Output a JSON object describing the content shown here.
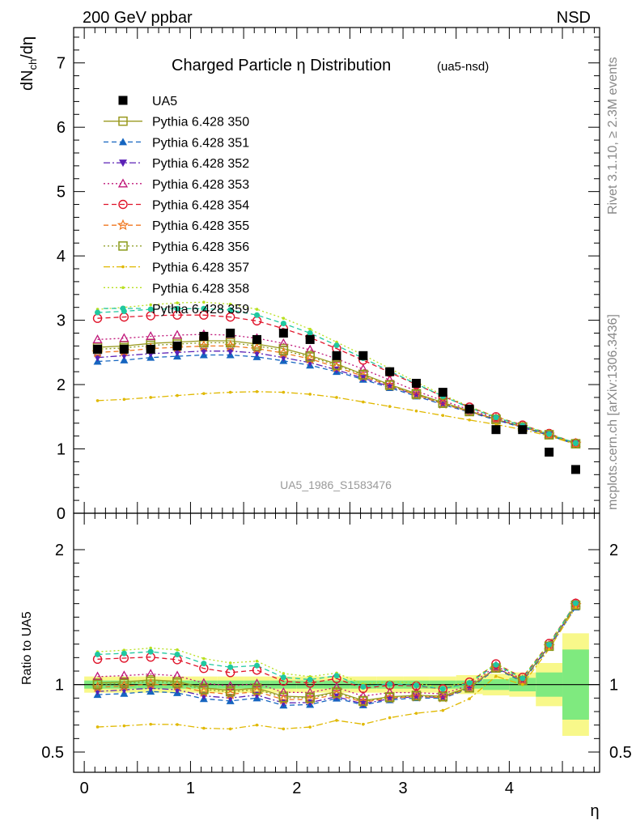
{
  "header": {
    "energy_label": "200 GeV ppbar",
    "process_label": "NSD",
    "side_label_top": "Rivet 3.1.10, ≥ 2.3M events",
    "side_label_bottom": "mcplots.cern.ch [arXiv:1306.3436]",
    "watermark": "UA5_1986_S1583476"
  },
  "chart_data": [
    {
      "type": "line",
      "title": "Charged Particle η Distribution",
      "subtitle": "(ua5-nsd)",
      "ylabel": "dN_ch/dη",
      "xlabel": "",
      "xlim": [
        -0.1,
        4.85
      ],
      "ylim": [
        0,
        7.55
      ],
      "yticks": [
        "0",
        "1",
        "2",
        "3",
        "4",
        "5",
        "6",
        "7"
      ],
      "grid": false,
      "legend_position": "top-left",
      "x": [
        0.125,
        0.375,
        0.625,
        0.875,
        1.125,
        1.375,
        1.625,
        1.875,
        2.125,
        2.375,
        2.625,
        2.875,
        3.125,
        3.375,
        3.625,
        3.875,
        4.125,
        4.375,
        4.625
      ],
      "data_series": {
        "name": "UA5",
        "marker": "square-filled",
        "color": "#000000",
        "values": [
          2.55,
          2.55,
          2.55,
          2.6,
          2.75,
          2.8,
          2.7,
          2.8,
          2.7,
          2.45,
          2.45,
          2.2,
          2.02,
          1.88,
          1.62,
          1.3,
          1.3,
          0.95,
          0.68
        ]
      },
      "series": [
        {
          "name": "Pythia 6.428 350",
          "color": "#9a9a20",
          "marker": "square-open",
          "dash": "solid",
          "values": [
            2.58,
            2.6,
            2.64,
            2.66,
            2.68,
            2.68,
            2.63,
            2.56,
            2.45,
            2.32,
            2.16,
            2.0,
            1.86,
            1.72,
            1.59,
            1.46,
            1.34,
            1.22,
            1.08
          ]
        },
        {
          "name": "Pythia 6.428 351",
          "color": "#1565c0",
          "marker": "triangle-up-filled",
          "dash": "dashed",
          "values": [
            2.36,
            2.38,
            2.42,
            2.44,
            2.46,
            2.46,
            2.43,
            2.37,
            2.3,
            2.2,
            2.08,
            1.95,
            1.82,
            1.69,
            1.57,
            1.45,
            1.33,
            1.21,
            1.07
          ]
        },
        {
          "name": "Pythia 6.428 352",
          "color": "#5b21b6",
          "marker": "triangle-down-filled",
          "dash": "dashdot",
          "values": [
            2.42,
            2.45,
            2.48,
            2.5,
            2.52,
            2.52,
            2.49,
            2.42,
            2.34,
            2.23,
            2.1,
            1.97,
            1.84,
            1.7,
            1.58,
            1.46,
            1.34,
            1.22,
            1.08
          ]
        },
        {
          "name": "Pythia 6.428 353",
          "color": "#c0187a",
          "marker": "triangle-up-open",
          "dash": "dotted",
          "values": [
            2.7,
            2.72,
            2.75,
            2.77,
            2.78,
            2.77,
            2.72,
            2.64,
            2.54,
            2.4,
            2.24,
            2.07,
            1.9,
            1.75,
            1.61,
            1.48,
            1.35,
            1.23,
            1.09
          ]
        },
        {
          "name": "Pythia 6.428 354",
          "color": "#e0142a",
          "marker": "circle-open",
          "dash": "dashed",
          "values": [
            3.03,
            3.05,
            3.07,
            3.08,
            3.08,
            3.05,
            2.99,
            2.87,
            2.73,
            2.56,
            2.38,
            2.19,
            2.0,
            1.82,
            1.65,
            1.5,
            1.37,
            1.24,
            1.09
          ]
        },
        {
          "name": "Pythia 6.428 355",
          "color": "#f07820",
          "marker": "star-open",
          "dash": "dashed",
          "values": [
            2.5,
            2.52,
            2.56,
            2.58,
            2.6,
            2.6,
            2.56,
            2.49,
            2.4,
            2.27,
            2.13,
            1.98,
            1.84,
            1.7,
            1.58,
            1.46,
            1.34,
            1.22,
            1.08
          ]
        },
        {
          "name": "Pythia 6.428 356",
          "color": "#8a9a1a",
          "marker": "square-open",
          "dash": "dotted",
          "values": [
            2.55,
            2.57,
            2.61,
            2.63,
            2.65,
            2.65,
            2.6,
            2.53,
            2.43,
            2.3,
            2.15,
            1.99,
            1.85,
            1.71,
            1.58,
            1.46,
            1.34,
            1.22,
            1.08
          ]
        },
        {
          "name": "Pythia 6.428 357",
          "color": "#e0b800",
          "marker": "dot",
          "dash": "dashdot",
          "values": [
            1.75,
            1.77,
            1.8,
            1.83,
            1.86,
            1.88,
            1.89,
            1.88,
            1.85,
            1.8,
            1.73,
            1.66,
            1.59,
            1.52,
            1.45,
            1.38,
            1.3,
            1.2,
            1.07
          ]
        },
        {
          "name": "Pythia 6.428 358",
          "color": "#b8e020",
          "marker": "dot",
          "dash": "dotted",
          "values": [
            3.17,
            3.2,
            3.24,
            3.27,
            3.28,
            3.25,
            3.17,
            3.03,
            2.86,
            2.66,
            2.46,
            2.25,
            2.04,
            1.84,
            1.66,
            1.5,
            1.37,
            1.24,
            1.09
          ]
        },
        {
          "name": "Pythia 6.428 359",
          "color": "#20c8a0",
          "marker": "dot-filled",
          "dash": "dashed",
          "values": [
            3.12,
            3.14,
            3.17,
            3.18,
            3.18,
            3.16,
            3.08,
            2.95,
            2.8,
            2.61,
            2.41,
            2.21,
            2.01,
            1.82,
            1.64,
            1.49,
            1.36,
            1.23,
            1.09
          ]
        }
      ]
    },
    {
      "type": "line",
      "ylabel": "Ratio to UA5",
      "xlabel": "η",
      "xlim": [
        -0.1,
        4.85
      ],
      "ylim": [
        0.35,
        2.27
      ],
      "yticks": [
        "0.5",
        "1",
        "2"
      ],
      "xticks": [
        "0",
        "1",
        "2",
        "3",
        "4"
      ],
      "reference_line": 1,
      "uncertainty_bands": {
        "inner_color": "#7fea7f",
        "outer_color": "#f8f88a",
        "x_edges": [
          0.0,
          0.25,
          0.5,
          0.75,
          1.0,
          1.25,
          1.5,
          1.75,
          2.0,
          2.25,
          2.5,
          2.75,
          3.0,
          3.25,
          3.5,
          3.75,
          4.0,
          4.25,
          4.5,
          4.75
        ],
        "inner_half_width": [
          0.03,
          0.03,
          0.03,
          0.03,
          0.03,
          0.03,
          0.03,
          0.03,
          0.03,
          0.03,
          0.03,
          0.03,
          0.03,
          0.03,
          0.03,
          0.04,
          0.05,
          0.09,
          0.26
        ],
        "outer_half_width": [
          0.06,
          0.06,
          0.06,
          0.06,
          0.06,
          0.06,
          0.06,
          0.06,
          0.06,
          0.06,
          0.06,
          0.06,
          0.06,
          0.06,
          0.07,
          0.08,
          0.09,
          0.16,
          0.38
        ]
      }
    }
  ]
}
